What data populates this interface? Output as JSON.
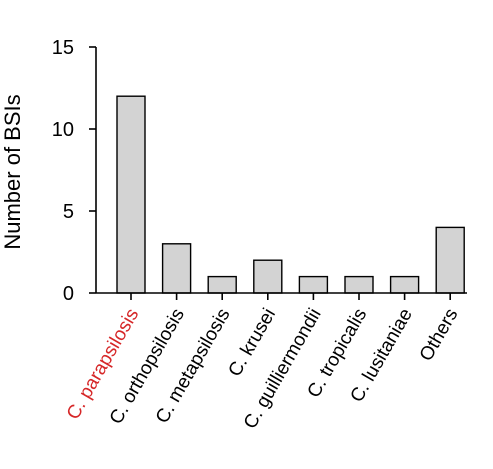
{
  "chart_data": {
    "type": "bar",
    "title": "",
    "xlabel": "",
    "ylabel": "Number of BSIs",
    "ylim": [
      0,
      15
    ],
    "yticks": [
      0,
      5,
      10,
      15
    ],
    "grid": false,
    "bar_color": "#d3d3d3",
    "edge_color": "#000000",
    "categories": [
      "C. parapsilosis",
      "C. orthopsilosis",
      "C. metapsilosis",
      "C. krusei",
      "C. guilliermondii",
      "C. tropicalis",
      "C. lusitaniae",
      "Others"
    ],
    "category_colors": [
      "#d62728",
      "#000000",
      "#000000",
      "#000000",
      "#000000",
      "#000000",
      "#000000",
      "#000000"
    ],
    "values": [
      12,
      3,
      1,
      2,
      1,
      1,
      1,
      4
    ]
  }
}
